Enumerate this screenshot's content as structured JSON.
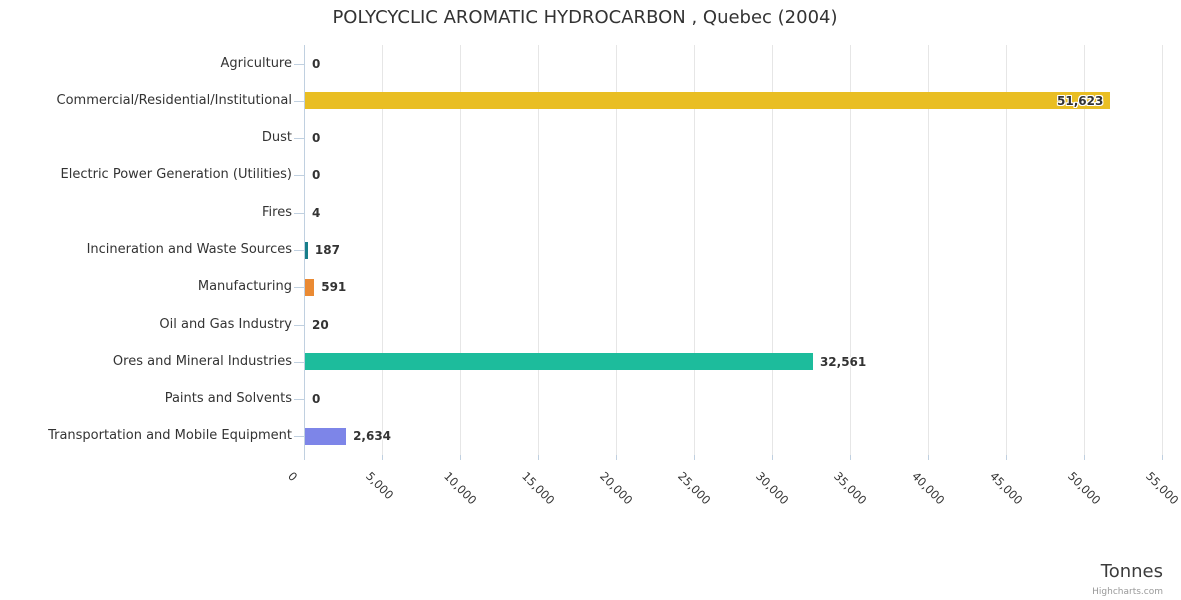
{
  "theme": {
    "background": "#ffffff",
    "text_color": "#333333",
    "gridline_color": "#e6e6e6",
    "axis_line_color": "#c0d0e0",
    "credits_color": "#999999"
  },
  "chart_data": {
    "type": "bar",
    "orientation": "horizontal",
    "title": "POLYCYCLIC AROMATIC HYDROCARBON , Quebec (2004)",
    "categories": [
      "Agriculture",
      "Commercial/Residential/Institutional",
      "Dust",
      "Electric Power Generation (Utilities)",
      "Fires",
      "Incineration and Waste Sources",
      "Manufacturing",
      "Oil and Gas Industry",
      "Ores and Mineral Industries",
      "Paints and Solvents",
      "Transportation and Mobile Equipment"
    ],
    "values": [
      0,
      51623,
      0,
      0,
      4,
      187,
      591,
      20,
      32561,
      0,
      2634
    ],
    "data_labels": [
      "0",
      "51,623",
      "0",
      "0",
      "4",
      "187",
      "591",
      "20",
      "32,561",
      "0",
      "2,634"
    ],
    "colors": [
      null,
      "#e9be23",
      null,
      null,
      null,
      "#177e8a",
      "#ea8a33",
      null,
      "#1dbc9c",
      null,
      "#7d85e8"
    ],
    "xlim": [
      0,
      55000
    ],
    "x_ticks": [
      {
        "value": 0,
        "label": "0"
      },
      {
        "value": 5000,
        "label": "5,000"
      },
      {
        "value": 10000,
        "label": "10,000"
      },
      {
        "value": 15000,
        "label": "15,000"
      },
      {
        "value": 20000,
        "label": "20,000"
      },
      {
        "value": 25000,
        "label": "25,000"
      },
      {
        "value": 30000,
        "label": "30,000"
      },
      {
        "value": 35000,
        "label": "35,000"
      },
      {
        "value": 40000,
        "label": "40,000"
      },
      {
        "value": 45000,
        "label": "45,000"
      },
      {
        "value": 50000,
        "label": "50,000"
      },
      {
        "value": 55000,
        "label": "55,000"
      }
    ],
    "axis_title": "Tonnes",
    "credits": "Highcharts.com",
    "grid": true,
    "legend": false
  }
}
